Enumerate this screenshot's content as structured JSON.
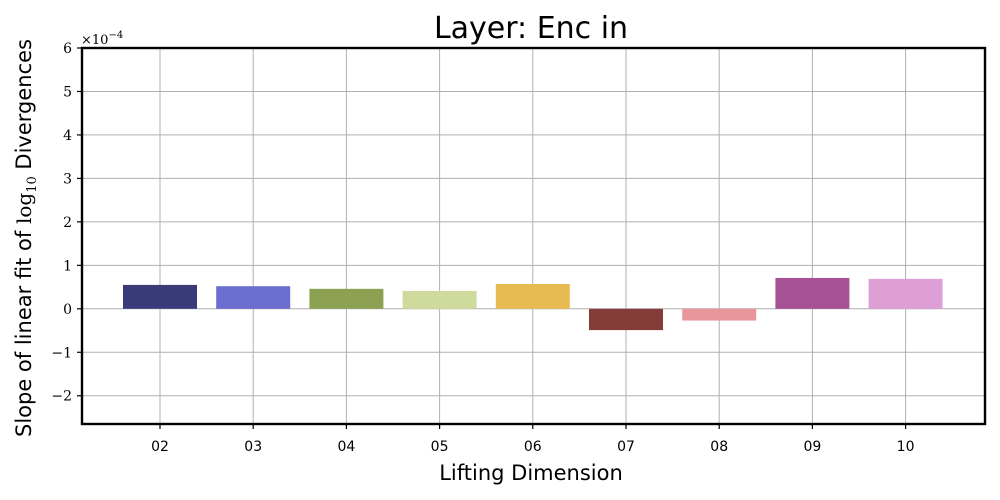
{
  "chart_data": {
    "type": "bar",
    "title": "Layer: Enc in",
    "xlabel": "Lifting Dimension",
    "ylabel_prefix": "Slope of linear fit of ",
    "ylabel_math": "log",
    "ylabel_sub": "10",
    "ylabel_suffix": " Divergences",
    "y_exponent_base": "×10",
    "y_exponent_power": "−4",
    "categories": [
      "02",
      "03",
      "04",
      "05",
      "06",
      "07",
      "08",
      "09",
      "10"
    ],
    "values": [
      0.55,
      0.52,
      0.46,
      0.41,
      0.57,
      -0.49,
      -0.27,
      0.71,
      0.69
    ],
    "colors": [
      "#393b79",
      "#6b6ecf",
      "#8ca252",
      "#cedb9c",
      "#e7ba52",
      "#843c39",
      "#e7969c",
      "#a55194",
      "#de9ed6"
    ],
    "yticks": [
      -2,
      -1,
      0,
      1,
      2,
      3,
      4,
      5,
      6
    ],
    "ytick_labels": [
      "−2",
      "−1",
      "0",
      "1",
      "2",
      "3",
      "4",
      "5",
      "6"
    ],
    "ylim": [
      -2.65,
      6.0
    ],
    "grid": true
  }
}
